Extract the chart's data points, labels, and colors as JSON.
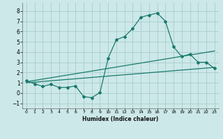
{
  "xlabel": "Humidex (Indice chaleur)",
  "ylabel": "",
  "background_color": "#cce8e8",
  "grid_color": "#aacccc",
  "line_color": "#1a7a6e",
  "ylim": [
    -1.5,
    8.8
  ],
  "xlim": [
    -0.5,
    23.5
  ],
  "yticks": [
    -1,
    0,
    1,
    2,
    3,
    4,
    5,
    6,
    7,
    8
  ],
  "xticks": [
    0,
    1,
    2,
    3,
    4,
    5,
    6,
    7,
    8,
    9,
    10,
    11,
    12,
    13,
    14,
    15,
    16,
    17,
    18,
    19,
    20,
    21,
    22,
    23
  ],
  "line1_x": [
    0,
    1,
    2,
    3,
    4,
    5,
    6,
    7,
    8,
    9,
    10,
    11,
    12,
    13,
    14,
    15,
    16,
    17,
    18,
    19,
    20,
    21,
    22,
    23
  ],
  "line1_y": [
    1.2,
    0.9,
    0.65,
    0.85,
    0.55,
    0.55,
    0.7,
    -0.35,
    -0.45,
    0.05,
    3.4,
    5.2,
    5.5,
    6.3,
    7.4,
    7.6,
    7.8,
    7.0,
    4.5,
    3.55,
    3.8,
    3.0,
    3.0,
    2.4
  ],
  "line2_x": [
    0,
    23
  ],
  "line2_y": [
    1.1,
    4.1
  ],
  "line3_x": [
    0,
    23
  ],
  "line3_y": [
    1.0,
    2.5
  ]
}
